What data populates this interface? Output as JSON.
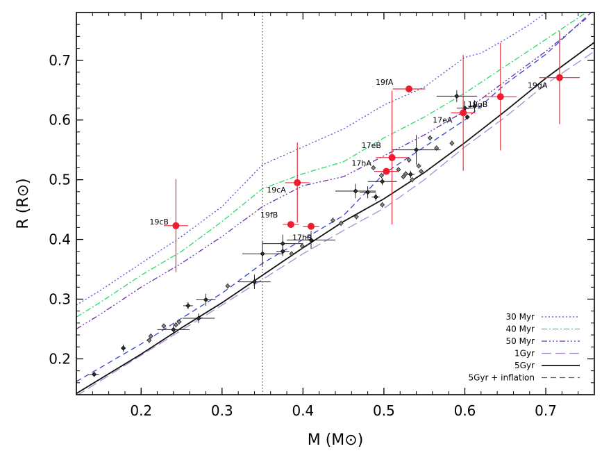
{
  "chart_data": {
    "type": "scatter",
    "xlabel": "M (M⊙)",
    "ylabel": "R (R⊙)",
    "xlim": [
      0.12,
      0.76
    ],
    "ylim": [
      0.14,
      0.78
    ],
    "x_ticks": [
      0.2,
      0.3,
      0.4,
      0.5,
      0.6,
      0.7
    ],
    "x_tick_labels": [
      "0.2",
      "0.3",
      "0.4",
      "0.5",
      "0.6",
      "0.7"
    ],
    "y_ticks": [
      0.2,
      0.3,
      0.4,
      0.5,
      0.6,
      0.7
    ],
    "y_tick_labels": [
      "0.2",
      "0.3",
      "0.4",
      "0.5",
      "0.6",
      "0.7"
    ],
    "vertical_reference_line": {
      "x": 0.35,
      "style": "dotted"
    },
    "legend_position": "bottom-right",
    "isochrones": [
      {
        "name": "30 Myr",
        "color": "#4a4ae0",
        "dash": "2,3",
        "points": [
          [
            0.12,
            0.29
          ],
          [
            0.15,
            0.315
          ],
          [
            0.2,
            0.36
          ],
          [
            0.25,
            0.405
          ],
          [
            0.3,
            0.455
          ],
          [
            0.35,
            0.525
          ],
          [
            0.4,
            0.555
          ],
          [
            0.45,
            0.585
          ],
          [
            0.5,
            0.625
          ],
          [
            0.55,
            0.655
          ],
          [
            0.6,
            0.705
          ],
          [
            0.62,
            0.712
          ],
          [
            0.65,
            0.735
          ],
          [
            0.68,
            0.76
          ],
          [
            0.7,
            0.78
          ]
        ]
      },
      {
        "name": "40 Myr",
        "color": "#22dd66",
        "dash": "8,3,2,3",
        "points": [
          [
            0.12,
            0.27
          ],
          [
            0.15,
            0.295
          ],
          [
            0.2,
            0.34
          ],
          [
            0.25,
            0.38
          ],
          [
            0.3,
            0.43
          ],
          [
            0.35,
            0.485
          ],
          [
            0.4,
            0.51
          ],
          [
            0.45,
            0.53
          ],
          [
            0.5,
            0.57
          ],
          [
            0.55,
            0.605
          ],
          [
            0.6,
            0.645
          ],
          [
            0.65,
            0.69
          ],
          [
            0.7,
            0.735
          ],
          [
            0.75,
            0.78
          ]
        ]
      },
      {
        "name": "50 Myr",
        "color": "#6a2aa8",
        "dash": "8,3,2,3,2,3,2,3",
        "points": [
          [
            0.12,
            0.25
          ],
          [
            0.15,
            0.275
          ],
          [
            0.2,
            0.32
          ],
          [
            0.25,
            0.36
          ],
          [
            0.3,
            0.405
          ],
          [
            0.35,
            0.455
          ],
          [
            0.4,
            0.49
          ],
          [
            0.45,
            0.505
          ],
          [
            0.5,
            0.54
          ],
          [
            0.55,
            0.575
          ],
          [
            0.6,
            0.615
          ],
          [
            0.65,
            0.665
          ],
          [
            0.7,
            0.715
          ],
          [
            0.75,
            0.77
          ]
        ]
      },
      {
        "name": "1Gyr",
        "color": "#a98bd0",
        "dash": "14,6",
        "points": [
          [
            0.12,
            0.138
          ],
          [
            0.2,
            0.206
          ],
          [
            0.25,
            0.248
          ],
          [
            0.3,
            0.29
          ],
          [
            0.35,
            0.333
          ],
          [
            0.4,
            0.376
          ],
          [
            0.45,
            0.415
          ],
          [
            0.5,
            0.452
          ],
          [
            0.55,
            0.5
          ],
          [
            0.6,
            0.555
          ],
          [
            0.65,
            0.605
          ],
          [
            0.7,
            0.66
          ],
          [
            0.76,
            0.715
          ]
        ]
      },
      {
        "name": "5Gyr",
        "color": "#111111",
        "dash": "",
        "points": [
          [
            0.12,
            0.142
          ],
          [
            0.2,
            0.208
          ],
          [
            0.25,
            0.252
          ],
          [
            0.3,
            0.294
          ],
          [
            0.35,
            0.34
          ],
          [
            0.4,
            0.386
          ],
          [
            0.45,
            0.43
          ],
          [
            0.5,
            0.468
          ],
          [
            0.55,
            0.512
          ],
          [
            0.6,
            0.562
          ],
          [
            0.65,
            0.615
          ],
          [
            0.7,
            0.67
          ],
          [
            0.76,
            0.73
          ]
        ]
      },
      {
        "name": "5Gyr + inflation",
        "color": "#3344cc",
        "dash": "8,5",
        "points": [
          [
            0.12,
            0.162
          ],
          [
            0.2,
            0.225
          ],
          [
            0.25,
            0.268
          ],
          [
            0.3,
            0.31
          ],
          [
            0.35,
            0.36
          ],
          [
            0.4,
            0.4
          ],
          [
            0.45,
            0.44
          ],
          [
            0.5,
            0.51
          ],
          [
            0.55,
            0.555
          ],
          [
            0.6,
            0.6
          ],
          [
            0.65,
            0.66
          ],
          [
            0.7,
            0.71
          ],
          [
            0.76,
            0.785
          ]
        ]
      }
    ],
    "legend_entries": [
      "30 Myr",
      "40 Myr",
      "50 Myr",
      "1Gyr",
      "5Gyr",
      "5Gyr + inflation"
    ],
    "red_points": [
      {
        "label": "19cB",
        "x": 0.243,
        "y": 0.423,
        "xerr": 0.015,
        "yerr": 0.078
      },
      {
        "label": "19cA",
        "x": 0.393,
        "y": 0.495,
        "xerr": 0.015,
        "yerr": 0.067
      },
      {
        "label": "19fB",
        "x": 0.385,
        "y": 0.425,
        "xerr": 0.01,
        "yerr": 0.0
      },
      {
        "label": "17hB",
        "x": 0.41,
        "y": 0.422,
        "xerr": 0.01,
        "yerr": 0.0
      },
      {
        "label": "19fA",
        "x": 0.531,
        "y": 0.652,
        "xerr": 0.02,
        "yerr": 0.0
      },
      {
        "label": "17eB",
        "x": 0.51,
        "y": 0.537,
        "xerr": 0.02,
        "yerr": 0.112
      },
      {
        "label": "17hA",
        "x": 0.503,
        "y": 0.514,
        "xerr": 0.015,
        "yerr": 0.0
      },
      {
        "label": "17eA",
        "x": 0.598,
        "y": 0.612,
        "xerr": 0.015,
        "yerr": 0.097
      },
      {
        "label": "19gB",
        "x": 0.644,
        "y": 0.639,
        "xerr": 0.02,
        "yerr": 0.09
      },
      {
        "label": "19gA",
        "x": 0.717,
        "y": 0.671,
        "xerr": 0.025,
        "yerr": 0.078
      }
    ],
    "black_points": [
      {
        "x": 0.142,
        "y": 0.174,
        "xerr": 0.006,
        "yerr": 0.004
      },
      {
        "x": 0.178,
        "y": 0.218,
        "xerr": 0.0,
        "yerr": 0.006
      },
      {
        "x": 0.258,
        "y": 0.289,
        "xerr": 0.006,
        "yerr": 0.006
      },
      {
        "x": 0.28,
        "y": 0.299,
        "xerr": 0.012,
        "yerr": 0.01
      },
      {
        "x": 0.271,
        "y": 0.268,
        "xerr": 0.02,
        "yerr": 0.008
      },
      {
        "x": 0.24,
        "y": 0.249,
        "xerr": 0.02,
        "yerr": 0.008
      },
      {
        "x": 0.34,
        "y": 0.329,
        "xerr": 0.02,
        "yerr": 0.012
      },
      {
        "x": 0.35,
        "y": 0.376,
        "xerr": 0.025,
        "yerr": 0.02
      },
      {
        "x": 0.375,
        "y": 0.393,
        "xerr": 0.025,
        "yerr": 0.015
      },
      {
        "x": 0.375,
        "y": 0.38,
        "xerr": 0.008,
        "yerr": 0.008
      },
      {
        "x": 0.41,
        "y": 0.399,
        "xerr": 0.03,
        "yerr": 0.015
      },
      {
        "x": 0.465,
        "y": 0.481,
        "xerr": 0.025,
        "yerr": 0.012
      },
      {
        "x": 0.48,
        "y": 0.479,
        "xerr": 0.01,
        "yerr": 0.01
      },
      {
        "x": 0.49,
        "y": 0.471,
        "xerr": 0.005,
        "yerr": 0.006
      },
      {
        "x": 0.498,
        "y": 0.497,
        "xerr": 0.018,
        "yerr": 0.006
      },
      {
        "x": 0.533,
        "y": 0.509,
        "xerr": 0.005,
        "yerr": 0.006
      },
      {
        "x": 0.54,
        "y": 0.55,
        "xerr": 0.03,
        "yerr": 0.025
      },
      {
        "x": 0.59,
        "y": 0.64,
        "xerr": 0.025,
        "yerr": 0.01
      },
      {
        "x": 0.6,
        "y": 0.62,
        "xerr": 0.01,
        "yerr": 0.012
      },
      {
        "x": 0.612,
        "y": 0.623,
        "xerr": 0.008,
        "yerr": 0.01
      },
      {
        "x": 0.603,
        "y": 0.605,
        "xerr": 0.003,
        "yerr": 0.004
      }
    ],
    "small_points": [
      [
        0.21,
        0.231
      ],
      [
        0.212,
        0.238
      ],
      [
        0.228,
        0.255
      ],
      [
        0.243,
        0.257
      ],
      [
        0.247,
        0.262
      ],
      [
        0.307,
        0.322
      ],
      [
        0.386,
        0.376
      ],
      [
        0.399,
        0.389
      ],
      [
        0.437,
        0.432
      ],
      [
        0.447,
        0.427
      ],
      [
        0.466,
        0.438
      ],
      [
        0.498,
        0.458
      ],
      [
        0.487,
        0.52
      ],
      [
        0.497,
        0.507
      ],
      [
        0.518,
        0.517
      ],
      [
        0.524,
        0.505
      ],
      [
        0.527,
        0.51
      ],
      [
        0.531,
        0.533
      ],
      [
        0.535,
        0.5
      ],
      [
        0.543,
        0.523
      ],
      [
        0.546,
        0.514
      ],
      [
        0.557,
        0.57
      ],
      [
        0.565,
        0.553
      ],
      [
        0.584,
        0.561
      ],
      [
        0.6,
        0.612
      ]
    ]
  }
}
